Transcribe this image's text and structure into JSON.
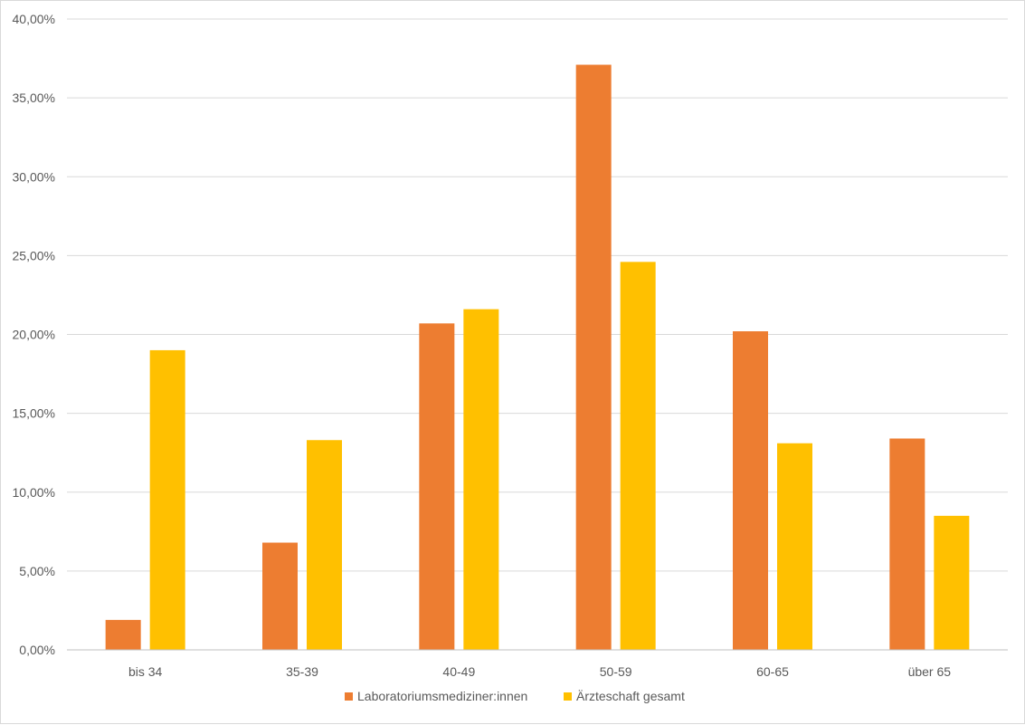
{
  "chart_data": {
    "type": "bar",
    "categories": [
      "bis 34",
      "35-39",
      "40-49",
      "50-59",
      "60-65",
      "über 65"
    ],
    "series": [
      {
        "name": "Laboratoriumsmediziner:innen",
        "color": "#ED7D31",
        "values": [
          1.9,
          6.8,
          20.7,
          37.1,
          20.2,
          13.4
        ]
      },
      {
        "name": "Ärzteschaft gesamt",
        "color": "#FFC000",
        "values": [
          19.0,
          13.3,
          21.6,
          24.6,
          13.1,
          8.5
        ]
      }
    ],
    "ylim": [
      0,
      40
    ],
    "yticks": [
      "0,00%",
      "5,00%",
      "10,00%",
      "15,00%",
      "20,00%",
      "25,00%",
      "30,00%",
      "35,00%",
      "40,00%"
    ],
    "grid": true,
    "legend_position": "bottom"
  }
}
